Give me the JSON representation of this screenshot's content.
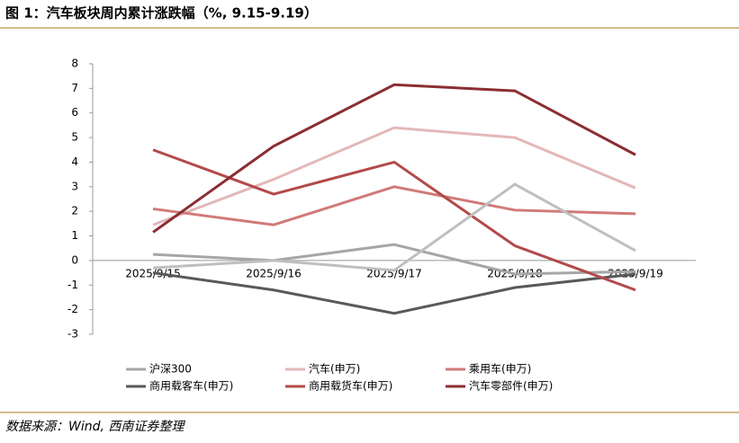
{
  "title": "图 1：汽车板块周内累计涨跌幅（%, 9.15-9.19）",
  "source": "数据来源：Wind, 西南证券整理",
  "chart_data": {
    "type": "line",
    "categories": [
      "2025/9/15",
      "2025/9/16",
      "2025/9/17",
      "2025/9/18",
      "2025/9/19"
    ],
    "series": [
      {
        "name": "沪深300",
        "color": "#a6a6a6",
        "values": [
          0.25,
          0.0,
          0.65,
          -0.55,
          -0.45
        ]
      },
      {
        "name": "汽车(申万)",
        "color": "#e3b8b8",
        "values": [
          1.45,
          3.3,
          5.4,
          5.0,
          2.95
        ]
      },
      {
        "name": "乘用车(申万)",
        "color": "#d07a78",
        "values": [
          2.1,
          1.45,
          3.0,
          2.05,
          1.9
        ]
      },
      {
        "name": "商用载客车(申万)",
        "color": "#595959",
        "values": [
          -0.5,
          -1.2,
          -2.15,
          -1.1,
          -0.55
        ]
      },
      {
        "name": "商用载货车(申万)",
        "color": "#b34a4a",
        "values": [
          4.5,
          2.7,
          4.0,
          0.6,
          -1.2
        ]
      },
      {
        "name": "汽车零部件(申万)",
        "color": "#8b2e32",
        "values": [
          1.15,
          4.65,
          7.15,
          6.9,
          4.3
        ]
      },
      {
        "color": "#bfbfbf",
        "values": [
          -0.3,
          0.0,
          -0.4,
          3.1,
          0.4
        ]
      }
    ],
    "ylim": [
      -3,
      8
    ],
    "yticks": [
      -3,
      -2,
      -1,
      0,
      1,
      2,
      3,
      4,
      5,
      6,
      7,
      8
    ]
  }
}
